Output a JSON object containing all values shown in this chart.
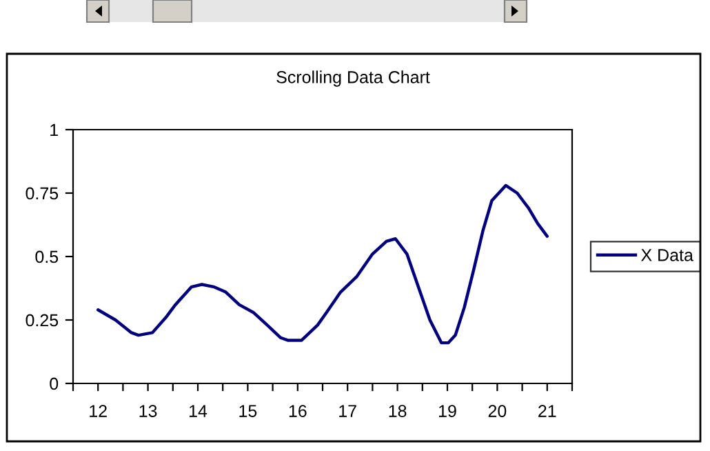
{
  "chart_data": {
    "type": "line",
    "title": "Scrolling Data Chart",
    "x": [
      12.0,
      12.35,
      12.67,
      12.81,
      13.09,
      13.36,
      13.55,
      13.87,
      14.08,
      14.33,
      14.56,
      14.83,
      15.11,
      15.39,
      15.66,
      15.8,
      16.08,
      16.4,
      16.58,
      16.86,
      17.18,
      17.5,
      17.78,
      17.96,
      18.19,
      18.42,
      18.65,
      18.88,
      19.02,
      19.16,
      19.34,
      19.53,
      19.71,
      19.89,
      20.17,
      20.4,
      20.63,
      20.81,
      21.0
    ],
    "series": [
      {
        "name": "X Data",
        "color": "#000080",
        "values": [
          0.29,
          0.25,
          0.2,
          0.19,
          0.2,
          0.26,
          0.31,
          0.38,
          0.39,
          0.38,
          0.36,
          0.31,
          0.28,
          0.23,
          0.18,
          0.17,
          0.17,
          0.23,
          0.28,
          0.36,
          0.42,
          0.51,
          0.56,
          0.57,
          0.51,
          0.38,
          0.25,
          0.16,
          0.16,
          0.19,
          0.3,
          0.45,
          0.6,
          0.72,
          0.78,
          0.75,
          0.69,
          0.63,
          0.58
        ]
      }
    ],
    "xlim": [
      11.5,
      21.5
    ],
    "xticks": [
      {
        "value": 11.5,
        "label": null
      },
      12,
      {
        "value": 12.5,
        "label": null
      },
      13,
      {
        "value": 13.5,
        "label": null
      },
      14,
      {
        "value": 14.5,
        "label": null
      },
      15,
      {
        "value": 15.5,
        "label": null
      },
      16,
      {
        "value": 16.5,
        "label": null
      },
      17,
      {
        "value": 17.5,
        "label": null
      },
      18,
      {
        "value": 18.5,
        "label": null
      },
      19,
      {
        "value": 19.5,
        "label": null
      },
      20,
      {
        "value": 20.5,
        "label": null
      },
      21,
      {
        "value": 21.5,
        "label": null
      }
    ],
    "ylim": [
      0,
      1
    ],
    "yticks": [
      0,
      0.25,
      0.5,
      0.75,
      1
    ],
    "grid": false,
    "legend": "right",
    "marker": "none",
    "line_style": "solid"
  }
}
